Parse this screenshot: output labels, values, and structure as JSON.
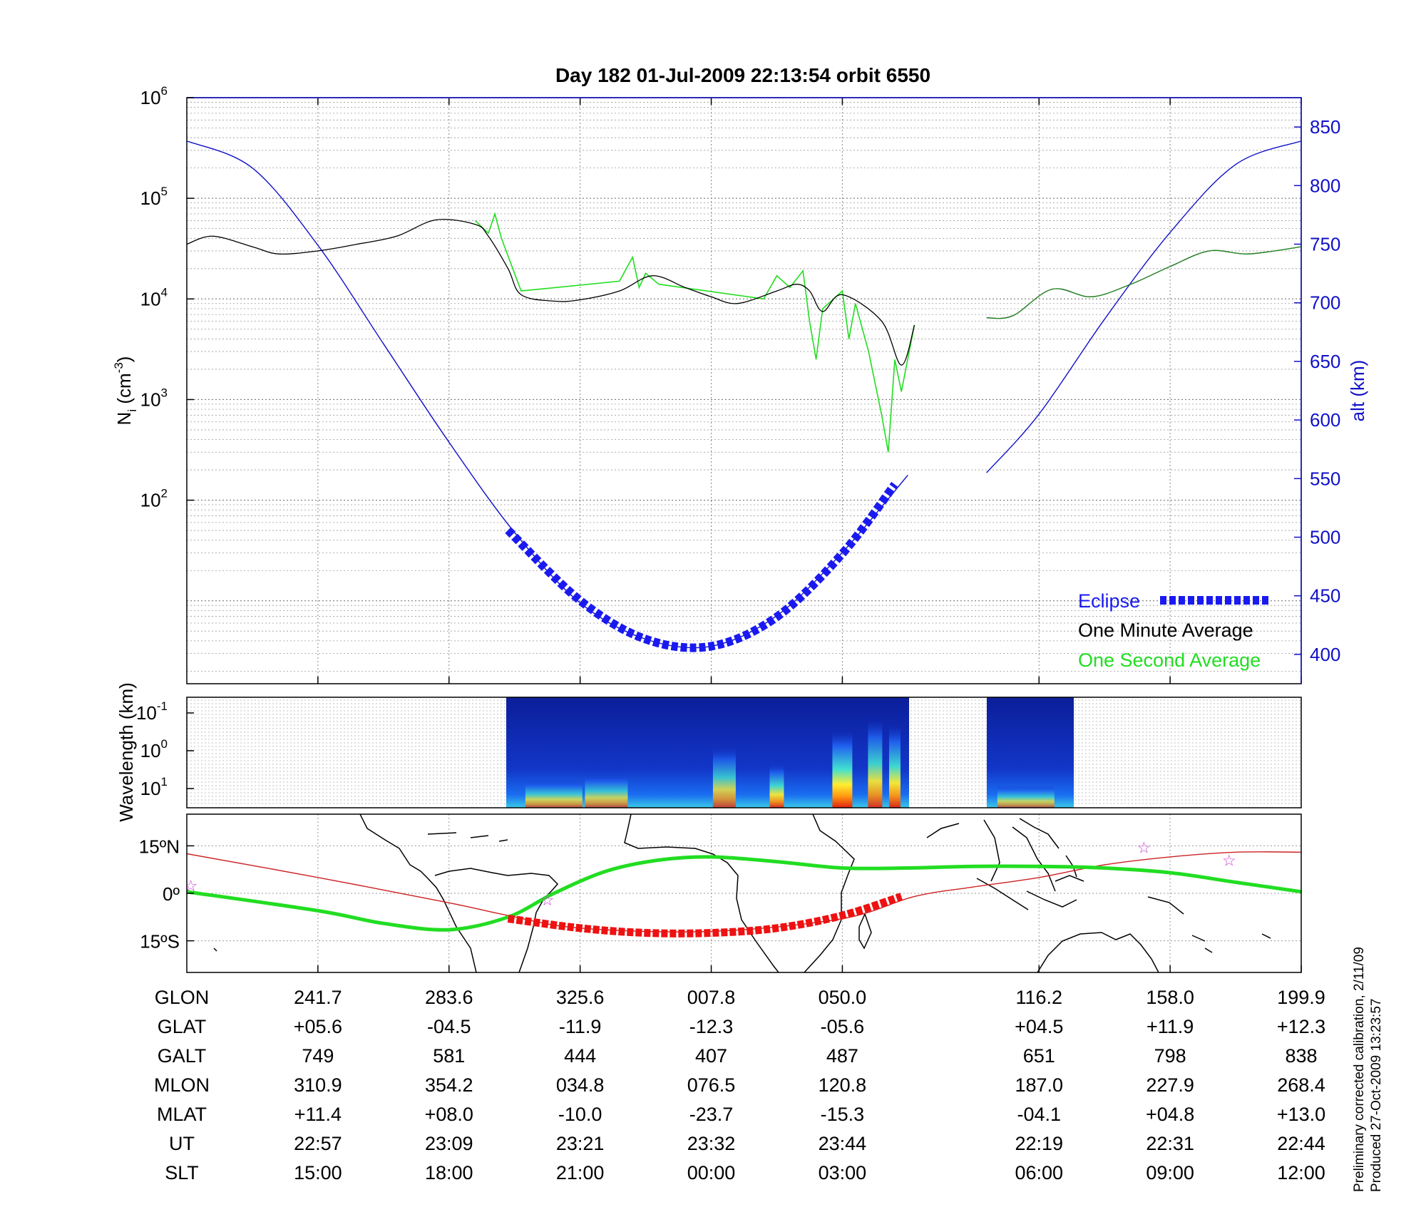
{
  "title": "Day 182  01-Jul-2009 22:13:54   orbit 6550",
  "side_notes": {
    "line1": "Preliminary corrected calibration, 2/11/09",
    "line2": "Produced 27-Oct-2009 13:23:57"
  },
  "colors": {
    "axis": "#000000",
    "altitude": "#1010c8",
    "eclipse": "#1a1af0",
    "one_minute": "#000000",
    "one_second": "#22dd22",
    "ground_track": "#22dd22",
    "magnetic_equator": "#cc2222",
    "eclipse_track": "#ee1111",
    "stars": "#cc44cc"
  },
  "chart_data": [
    {
      "type": "line",
      "panel": "ion density and altitude",
      "ylabel": "N",
      "ylabel_sub": "i",
      "ylabel_units": " (cm",
      "ylabel_exp": "-3",
      "ylabel_close": ")",
      "ylabel_right": "alt (km)",
      "yscale_left": "log",
      "ylim_left": [
        1.5,
        1000000
      ],
      "ylim_right": [
        375,
        875
      ],
      "left_ticks": [
        {
          "base": "10",
          "exp": "6",
          "value": 1000000
        },
        {
          "base": "10",
          "exp": "5",
          "value": 100000
        },
        {
          "base": "10",
          "exp": "4",
          "value": 10000
        },
        {
          "base": "10",
          "exp": "3",
          "value": 1000
        },
        {
          "base": "10",
          "exp": "2",
          "value": 100
        }
      ],
      "right_ticks": [
        "850",
        "800",
        "750",
        "700",
        "650",
        "600",
        "550",
        "500",
        "450",
        "400"
      ],
      "x_tick_index": [
        1,
        2,
        3,
        4,
        5,
        6.5,
        7.5,
        8.5
      ],
      "legend": {
        "eclipse": "Eclipse",
        "one_minute": "One Minute Average",
        "one_second": "One Second Average",
        "placement": "bottom-right"
      },
      "altitude_km": {
        "x": [
          0,
          0.5,
          1.0,
          1.5,
          2.0,
          2.5,
          3.0,
          3.5,
          4.0,
          4.5,
          5.0,
          5.5
        ],
        "y": [
          838,
          815,
          749,
          665,
          581,
          504,
          444,
          413,
          407,
          433,
          487,
          553
        ]
      },
      "altitude_km_2": {
        "x": [
          6.1,
          6.5,
          7.0,
          7.5,
          8.0,
          8.5
        ],
        "y": [
          555,
          605,
          686,
          760,
          818,
          838
        ]
      },
      "eclipse_km": {
        "x": [
          2.45,
          3.0,
          3.5,
          4.0,
          4.5,
          5.0,
          5.4
        ],
        "y": [
          506,
          446,
          413,
          407,
          432,
          486,
          545
        ]
      },
      "one_minute_density": {
        "x": [
          0,
          0.2,
          0.5,
          0.7,
          1.0,
          1.3,
          1.6,
          1.9,
          2.2,
          2.3,
          2.45,
          2.55,
          2.8,
          3.0,
          3.3,
          3.55,
          3.8,
          4.0,
          4.2,
          4.5,
          4.65,
          4.75,
          4.85,
          5.0,
          5.3,
          5.45,
          5.55
        ],
        "y": [
          35000,
          42000,
          33000,
          28000,
          30000,
          35000,
          42000,
          61000,
          55000,
          42000,
          20000,
          11000,
          9500,
          9800,
          12000,
          17000,
          13000,
          10500,
          9000,
          12000,
          14000,
          12000,
          7500,
          11000,
          6000,
          2200,
          5500
        ]
      },
      "one_minute_density_2": {
        "x": [
          6.1,
          6.3,
          6.6,
          6.9,
          7.2,
          7.5,
          7.8,
          8.1,
          8.5
        ],
        "y": [
          6500,
          6800,
          12500,
          10500,
          14000,
          21000,
          30000,
          28000,
          33000
        ]
      },
      "one_second_density": {
        "x": [
          2.2,
          2.3,
          2.35,
          2.4,
          2.55,
          3.3,
          3.4,
          3.45,
          3.5,
          3.6,
          4.4,
          4.5,
          4.6,
          4.7,
          4.75,
          4.8,
          4.85,
          5.0,
          5.05,
          5.1,
          5.2,
          5.3,
          5.35,
          5.4,
          5.45,
          5.55
        ],
        "y": [
          60000,
          45000,
          70000,
          40000,
          12000,
          15000,
          26000,
          13000,
          18000,
          14000,
          10000,
          17000,
          13000,
          19000,
          6000,
          2500,
          8000,
          12000,
          4000,
          9000,
          3000,
          700,
          300,
          2500,
          1200,
          5500
        ]
      }
    },
    {
      "type": "heatmap",
      "panel": "irregularity spectrogram",
      "ylabel": "Wavelength (km)",
      "y_ticks": [
        {
          "base": "10",
          "exp": "-1"
        },
        {
          "base": "10",
          "exp": "0"
        },
        {
          "base": "10",
          "exp": "1"
        }
      ],
      "data_ranges": [
        [
          2.45,
          5.55
        ],
        [
          6.1,
          6.8
        ]
      ]
    },
    {
      "type": "map",
      "panel": "ground track",
      "y_ticks": [
        "15ºN",
        "0º",
        "15ºS"
      ],
      "ylim": [
        -25,
        25
      ],
      "ground_track_lat": {
        "x": [
          0,
          1.0,
          1.5,
          2.0,
          2.45,
          2.8,
          3.2,
          3.6,
          4.0,
          4.5,
          5.0,
          5.5,
          6.0,
          6.5,
          7.0,
          7.5,
          8.0,
          8.5
        ],
        "y": [
          0.5,
          -5.5,
          -9.5,
          -11.5,
          -7.5,
          0,
          7,
          10.5,
          11.5,
          10,
          8,
          8,
          8.5,
          8.5,
          8,
          6.5,
          3.5,
          0.5
        ]
      },
      "magnetic_equator_lat": {
        "x": [
          0,
          1.0,
          2.0,
          2.45,
          3.0,
          4.0,
          5.0,
          5.55,
          6.0,
          6.5,
          7.0,
          7.5,
          8.0,
          8.5
        ],
        "y": [
          12.5,
          5,
          -3,
          -7,
          -11,
          -12,
          -8,
          -1,
          2,
          5,
          9,
          11.5,
          13,
          13
        ]
      },
      "eclipse_lat": {
        "x": [
          2.45,
          3.0,
          3.5,
          4.0,
          4.5,
          5.0,
          5.45
        ],
        "y": [
          -8,
          -11,
          -12.5,
          -12.5,
          -11,
          -7,
          -1
        ]
      },
      "stars": {
        "x": [
          0.03,
          2.75,
          7.3,
          7.95
        ],
        "y": [
          2.5,
          -2,
          14.5,
          10.5
        ]
      }
    }
  ],
  "table": {
    "row_labels": [
      "GLON",
      "GLAT",
      "GALT",
      "MLON",
      "MLAT",
      "UT",
      "SLT"
    ],
    "columns": [
      [
        "241.7",
        "+05.6",
        "749",
        "310.9",
        "+11.4",
        "22:57",
        "15:00"
      ],
      [
        "283.6",
        "-04.5",
        "581",
        "354.2",
        "+08.0",
        "23:09",
        "18:00"
      ],
      [
        "325.6",
        "-11.9",
        "444",
        "034.8",
        "-10.0",
        "23:21",
        "21:00"
      ],
      [
        "007.8",
        "-12.3",
        "407",
        "076.5",
        "-23.7",
        "23:32",
        "00:00"
      ],
      [
        "050.0",
        "-05.6",
        "487",
        "120.8",
        "-15.3",
        "23:44",
        "03:00"
      ],
      [
        "116.2",
        "+04.5",
        "651",
        "187.0",
        "-04.1",
        "22:19",
        "06:00"
      ],
      [
        "158.0",
        "+11.9",
        "798",
        "227.9",
        "+04.8",
        "22:31",
        "09:00"
      ],
      [
        "199.9",
        "+12.3",
        "838",
        "268.4",
        "+13.0",
        "22:44",
        "12:00"
      ]
    ]
  }
}
